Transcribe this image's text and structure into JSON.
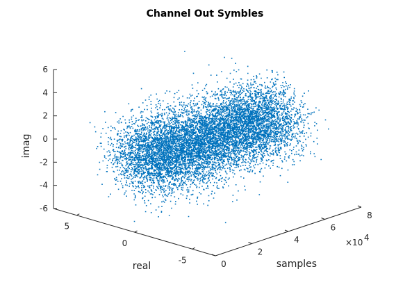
{
  "chart_data": {
    "type": "scatter",
    "title": "Channel Out Symbles",
    "xlabel": "real",
    "ylabel": "samples",
    "zlabel": "imag",
    "real_ticks": [
      "5",
      "0",
      "-5"
    ],
    "samples_ticks": [
      "0",
      "2",
      "4",
      "6",
      "8"
    ],
    "samples_exponent": "×10",
    "samples_exponent_power": "4",
    "imag_ticks": [
      "6",
      "4",
      "2",
      "0",
      "-2",
      "-4",
      "-6"
    ],
    "xlim": [
      -7,
      7
    ],
    "ylim": [
      0,
      80000
    ],
    "zlim": [
      -6,
      6
    ],
    "marker_color": "#0072BD",
    "distribution": {
      "description_of_cloud": "complex Gaussian channel output",
      "real_mean": 0,
      "real_std": 1.5,
      "imag_mean": 0,
      "imag_std": 1.5,
      "samples_range": [
        0,
        80000
      ]
    },
    "grid": false,
    "view": "3-D"
  }
}
